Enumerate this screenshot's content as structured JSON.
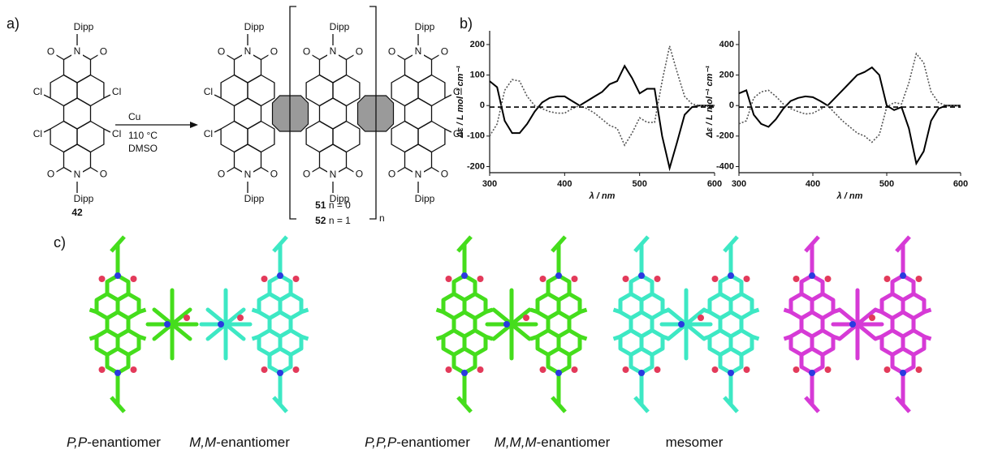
{
  "panels": {
    "a": "a)",
    "b": "b)",
    "c": "c)"
  },
  "scheme": {
    "atoms": {
      "dipp": "Dipp",
      "n": "N",
      "o": "O",
      "cl": "Cl"
    },
    "reagent": "Cu",
    "temperature": "110 °C",
    "solvent": "DMSO",
    "start_label": "42",
    "bracket_index": "n",
    "products": [
      {
        "number": "51",
        "text": "n = 0"
      },
      {
        "number": "52",
        "text": "n = 1"
      }
    ]
  },
  "chart_data": [
    {
      "type": "line",
      "xlabel": "λ / nm",
      "ylabel": "Δε / L mol⁻¹ cm⁻¹",
      "x": [
        300,
        310,
        320,
        330,
        340,
        350,
        360,
        370,
        380,
        390,
        400,
        410,
        420,
        430,
        440,
        450,
        460,
        470,
        480,
        490,
        500,
        510,
        520,
        530,
        540,
        550,
        560,
        570,
        580,
        590,
        600
      ],
      "xlim": [
        300,
        600
      ],
      "xticks": [
        300,
        400,
        500,
        600
      ],
      "ylim": [
        -220,
        245
      ],
      "yticks": [
        -200,
        -100,
        0,
        100,
        200
      ],
      "series": [
        {
          "color": "#000000",
          "dash": "solid",
          "values": [
            80,
            60,
            -50,
            -90,
            -90,
            -60,
            -20,
            10,
            25,
            30,
            30,
            15,
            0,
            15,
            30,
            45,
            70,
            80,
            130,
            90,
            40,
            55,
            55,
            -100,
            -205,
            -120,
            -30,
            -5,
            0,
            0,
            0
          ]
        },
        {
          "color": "#555555",
          "dash": "dotted",
          "values": [
            -100,
            -60,
            50,
            85,
            80,
            30,
            0,
            -10,
            -20,
            -25,
            -25,
            -10,
            0,
            -10,
            -25,
            -45,
            -65,
            -75,
            -130,
            -90,
            -40,
            -55,
            -55,
            80,
            195,
            110,
            30,
            5,
            0,
            0,
            0
          ]
        },
        {
          "color": "#000000",
          "dash": "dashed",
          "values": [
            -5,
            -5,
            -5,
            -5,
            -5,
            -5,
            -5,
            -5,
            -5,
            -5,
            -5,
            -5,
            -5,
            -5,
            -5,
            -5,
            -5,
            -5,
            -5,
            -5,
            -5,
            -5,
            -5,
            -5,
            -5,
            -5,
            -5,
            -5,
            -5,
            -5,
            -5
          ]
        }
      ]
    },
    {
      "type": "line",
      "xlabel": "λ / nm",
      "ylabel": "Δε / L mol⁻¹ cm⁻¹",
      "x": [
        300,
        310,
        320,
        330,
        340,
        350,
        360,
        370,
        380,
        390,
        400,
        410,
        420,
        430,
        440,
        450,
        460,
        470,
        480,
        490,
        500,
        510,
        520,
        530,
        540,
        550,
        560,
        570,
        580,
        590,
        600
      ],
      "xlim": [
        300,
        600
      ],
      "xticks": [
        300,
        400,
        500,
        600
      ],
      "ylim": [
        -440,
        490
      ],
      "yticks": [
        -400,
        -200,
        0,
        200,
        400
      ],
      "series": [
        {
          "color": "#000000",
          "dash": "solid",
          "values": [
            80,
            100,
            -60,
            -120,
            -140,
            -90,
            -20,
            30,
            50,
            60,
            55,
            30,
            0,
            50,
            100,
            150,
            200,
            220,
            250,
            200,
            0,
            -30,
            -10,
            -150,
            -380,
            -300,
            -100,
            -20,
            0,
            0,
            0
          ]
        },
        {
          "color": "#555555",
          "dash": "dotted",
          "values": [
            -120,
            -100,
            50,
            90,
            100,
            60,
            10,
            -20,
            -40,
            -55,
            -50,
            -25,
            0,
            -50,
            -100,
            -140,
            -180,
            -200,
            -240,
            -190,
            -10,
            20,
            10,
            150,
            340,
            280,
            90,
            20,
            0,
            0,
            0
          ]
        },
        {
          "color": "#000000",
          "dash": "dashed",
          "values": [
            -10,
            -10,
            -10,
            -10,
            -10,
            -10,
            -10,
            -10,
            -10,
            -10,
            -10,
            -10,
            -10,
            -10,
            -10,
            -10,
            -10,
            -10,
            -10,
            -10,
            -10,
            -10,
            -10,
            -10,
            -10,
            -10,
            -10,
            -10,
            -10,
            -10,
            -10
          ]
        }
      ]
    }
  ],
  "models": {
    "captions": [
      {
        "stereo": "P,P",
        "suffix": "-enantiomer"
      },
      {
        "stereo": "M,M",
        "suffix": "-enantiomer"
      },
      {
        "stereo": "P,P,P",
        "suffix": "-enantiomer"
      },
      {
        "stereo": "M,M,M",
        "suffix": "-enantiomer"
      },
      {
        "text": "mesomer"
      }
    ]
  }
}
